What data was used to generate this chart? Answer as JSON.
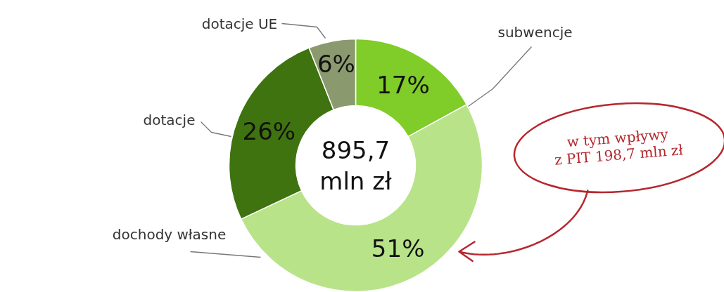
{
  "chart_data": {
    "type": "donut",
    "categories": [
      "subwencje",
      "dochody własne",
      "dotacje",
      "dotacje UE"
    ],
    "values": [
      17,
      51,
      26,
      6
    ],
    "colors": [
      "#80cc28",
      "#b8e389",
      "#3f730f",
      "#8b9a6e"
    ],
    "value_labels": [
      "17%",
      "51%",
      "26%",
      "6%"
    ],
    "annotations": [
      "895,7\nmln zł",
      "w tym wpływy\nz PIT 198,7 mln zł"
    ]
  }
}
